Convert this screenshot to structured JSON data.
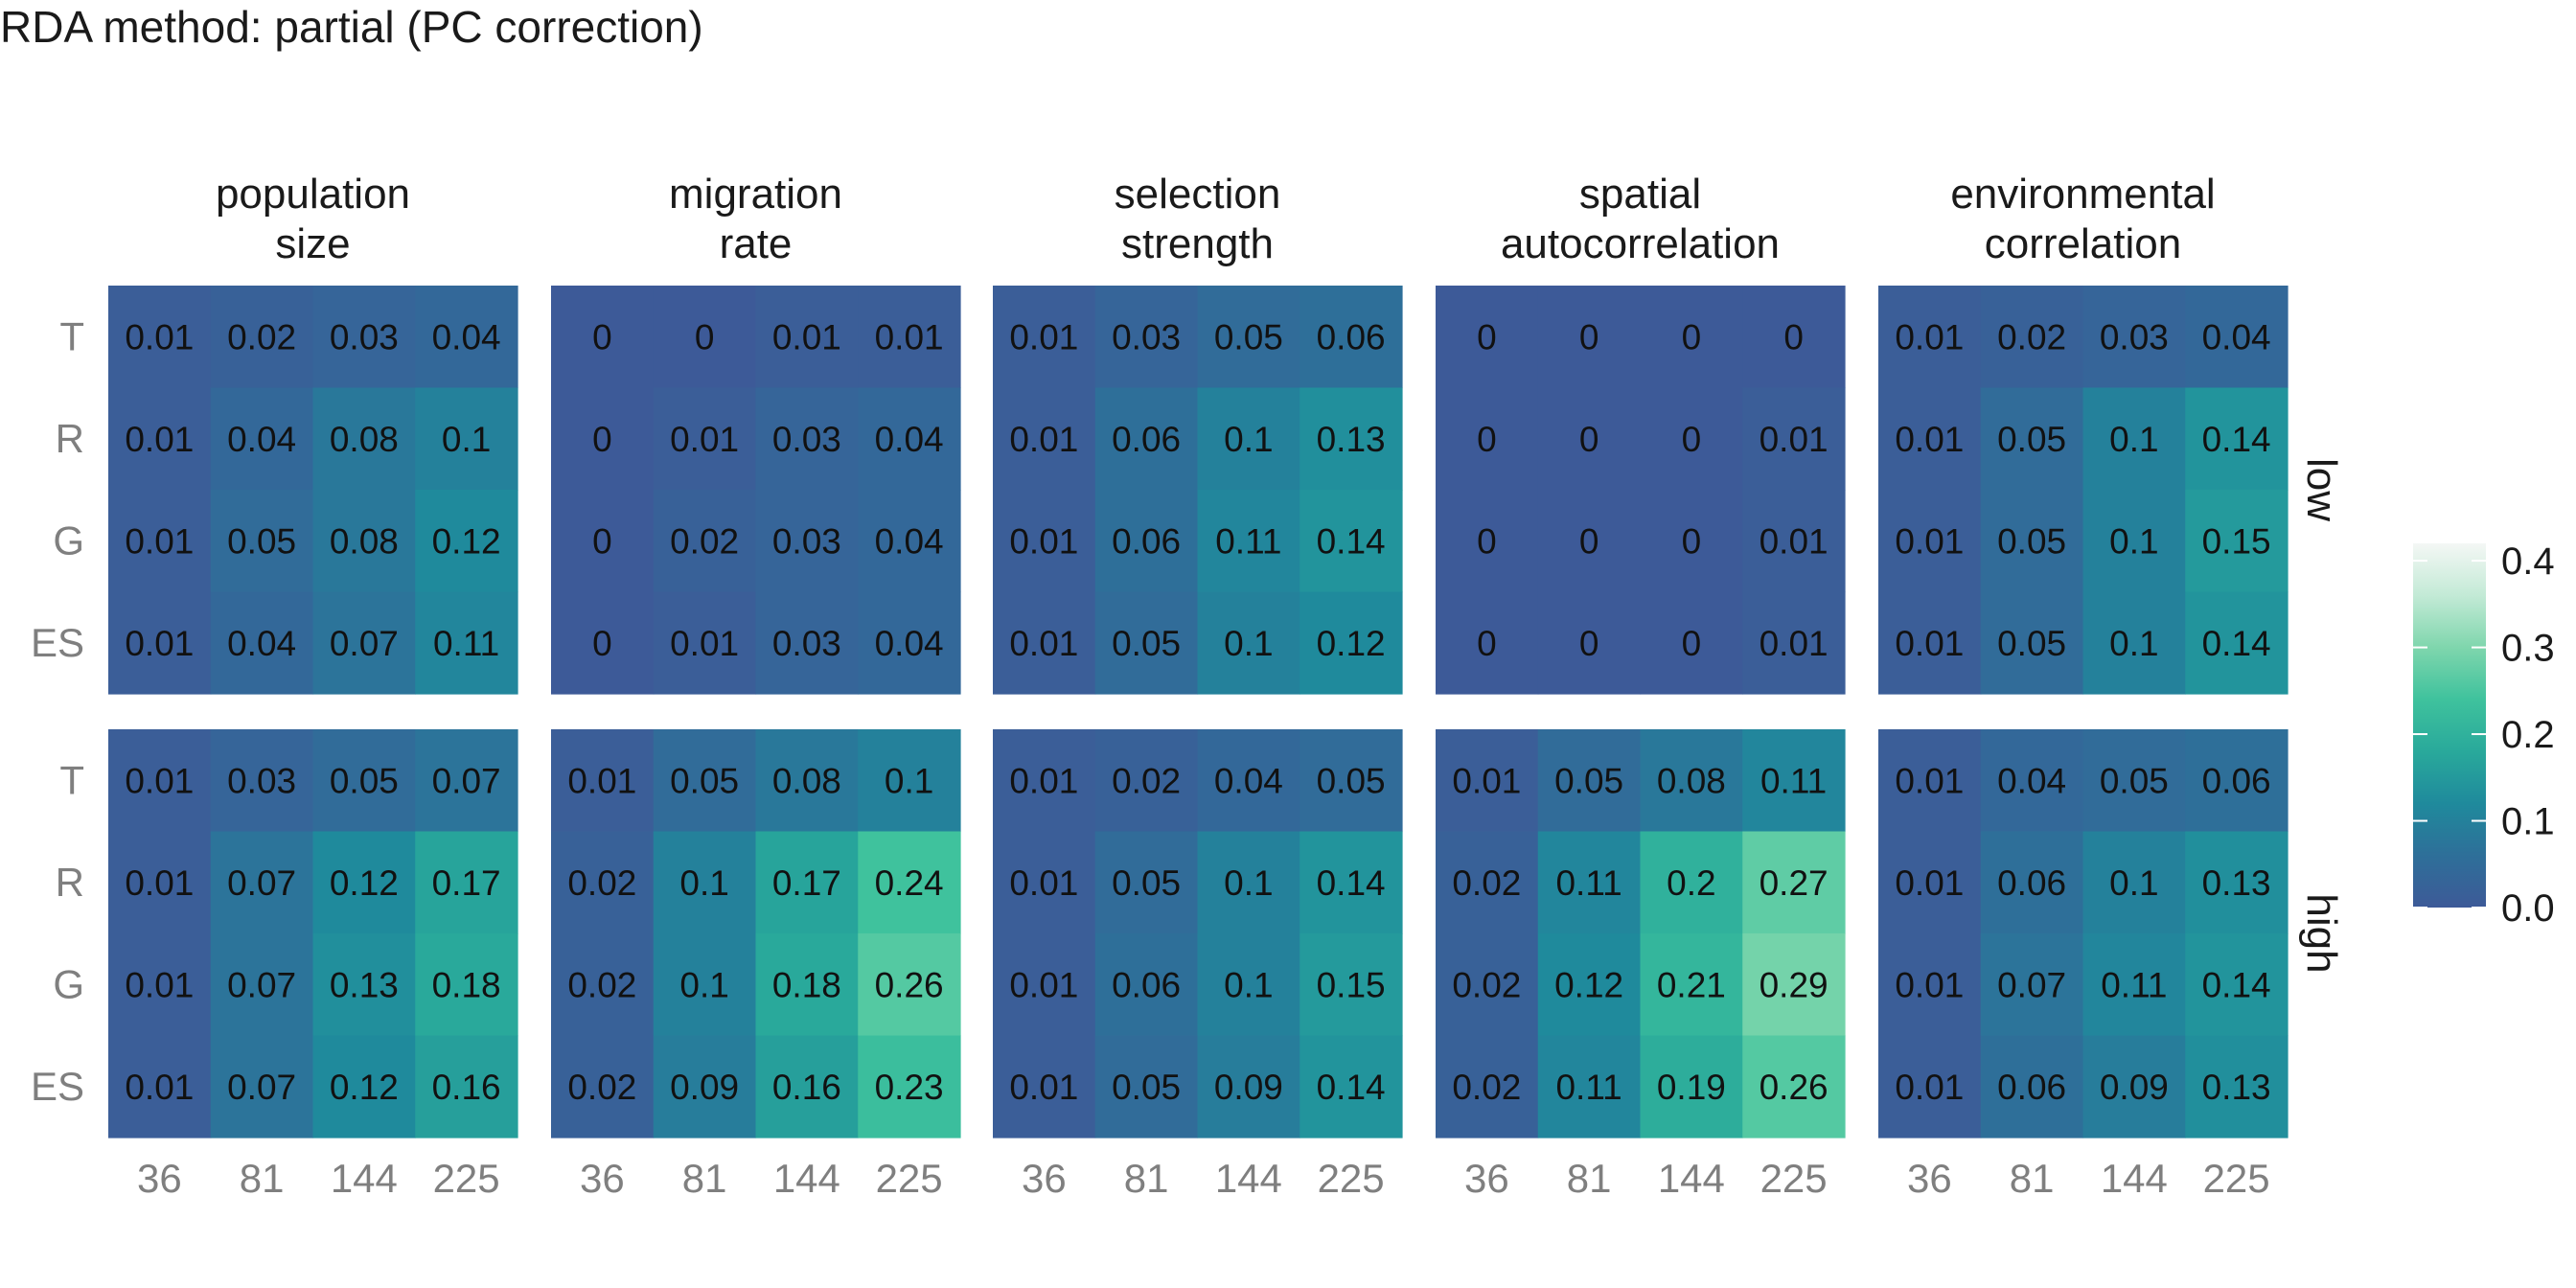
{
  "chart_data": {
    "type": "heatmap",
    "title": "RDA method: partial (PC correction)",
    "x_ticks": [
      "36",
      "81",
      "144",
      "225"
    ],
    "y_ticks": [
      "T",
      "R",
      "G",
      "ES"
    ],
    "facet_columns": [
      [
        "population",
        "size"
      ],
      [
        "migration",
        "rate"
      ],
      [
        "selection",
        "strength"
      ],
      [
        "spatial",
        "autocorrelation"
      ],
      [
        "environmental",
        "correlation"
      ]
    ],
    "facet_rows": [
      "low",
      "high"
    ],
    "legend": {
      "placement": "right",
      "range": [
        0,
        0.42
      ],
      "ticks": [
        {
          "value": 0.0,
          "label": "0.0"
        },
        {
          "value": 0.1,
          "label": "0.1"
        },
        {
          "value": 0.2,
          "label": "0.2"
        },
        {
          "value": 0.3,
          "label": "0.3"
        },
        {
          "value": 0.4,
          "label": "0.4"
        }
      ]
    },
    "palette": [
      "#3d5a98",
      "#2e6f99",
      "#1f8a9c",
      "#29a99b",
      "#3fc29d",
      "#7fd6ad",
      "#c3ead6",
      "#f4f7f5"
    ],
    "values": [
      [
        [
          [
            "0.01",
            "0.02",
            "0.03",
            "0.04"
          ],
          [
            "0.01",
            "0.04",
            "0.08",
            "0.1"
          ],
          [
            "0.01",
            "0.05",
            "0.08",
            "0.12"
          ],
          [
            "0.01",
            "0.04",
            "0.07",
            "0.11"
          ]
        ],
        [
          [
            "0",
            "0",
            "0.01",
            "0.01"
          ],
          [
            "0",
            "0.01",
            "0.03",
            "0.04"
          ],
          [
            "0",
            "0.02",
            "0.03",
            "0.04"
          ],
          [
            "0",
            "0.01",
            "0.03",
            "0.04"
          ]
        ],
        [
          [
            "0.01",
            "0.03",
            "0.05",
            "0.06"
          ],
          [
            "0.01",
            "0.06",
            "0.1",
            "0.13"
          ],
          [
            "0.01",
            "0.06",
            "0.11",
            "0.14"
          ],
          [
            "0.01",
            "0.05",
            "0.1",
            "0.12"
          ]
        ],
        [
          [
            "0",
            "0",
            "0",
            "0"
          ],
          [
            "0",
            "0",
            "0",
            "0.01"
          ],
          [
            "0",
            "0",
            "0",
            "0.01"
          ],
          [
            "0",
            "0",
            "0",
            "0.01"
          ]
        ],
        [
          [
            "0.01",
            "0.02",
            "0.03",
            "0.04"
          ],
          [
            "0.01",
            "0.05",
            "0.1",
            "0.14"
          ],
          [
            "0.01",
            "0.05",
            "0.1",
            "0.15"
          ],
          [
            "0.01",
            "0.05",
            "0.1",
            "0.14"
          ]
        ]
      ],
      [
        [
          [
            "0.01",
            "0.03",
            "0.05",
            "0.07"
          ],
          [
            "0.01",
            "0.07",
            "0.12",
            "0.17"
          ],
          [
            "0.01",
            "0.07",
            "0.13",
            "0.18"
          ],
          [
            "0.01",
            "0.07",
            "0.12",
            "0.16"
          ]
        ],
        [
          [
            "0.01",
            "0.05",
            "0.08",
            "0.1"
          ],
          [
            "0.02",
            "0.1",
            "0.17",
            "0.24"
          ],
          [
            "0.02",
            "0.1",
            "0.18",
            "0.26"
          ],
          [
            "0.02",
            "0.09",
            "0.16",
            "0.23"
          ]
        ],
        [
          [
            "0.01",
            "0.02",
            "0.04",
            "0.05"
          ],
          [
            "0.01",
            "0.05",
            "0.1",
            "0.14"
          ],
          [
            "0.01",
            "0.06",
            "0.1",
            "0.15"
          ],
          [
            "0.01",
            "0.05",
            "0.09",
            "0.14"
          ]
        ],
        [
          [
            "0.01",
            "0.05",
            "0.08",
            "0.11"
          ],
          [
            "0.02",
            "0.11",
            "0.2",
            "0.27"
          ],
          [
            "0.02",
            "0.12",
            "0.21",
            "0.29"
          ],
          [
            "0.02",
            "0.11",
            "0.19",
            "0.26"
          ]
        ],
        [
          [
            "0.01",
            "0.04",
            "0.05",
            "0.06"
          ],
          [
            "0.01",
            "0.06",
            "0.1",
            "0.13"
          ],
          [
            "0.01",
            "0.07",
            "0.11",
            "0.14"
          ],
          [
            "0.01",
            "0.06",
            "0.09",
            "0.13"
          ]
        ]
      ]
    ]
  }
}
